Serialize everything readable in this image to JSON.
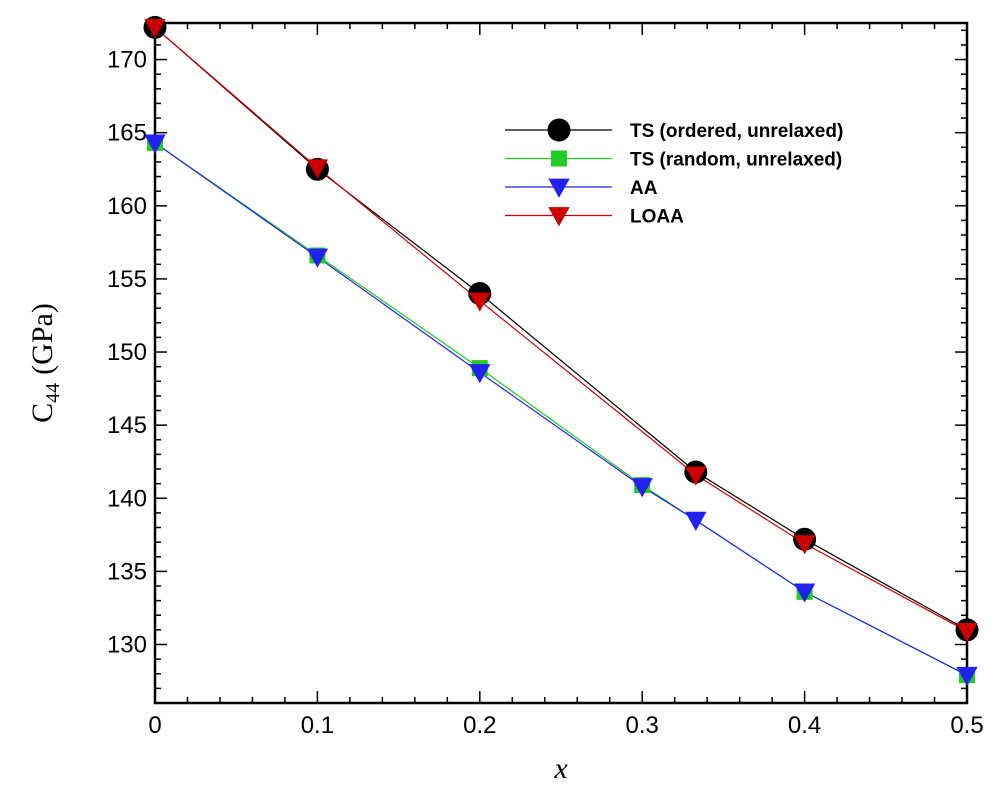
{
  "chart_data": {
    "type": "line",
    "title": "",
    "xlabel": "x",
    "ylabel": {
      "main": "C",
      "subscript": "44",
      "unit": "(GPa)"
    },
    "xlim": [
      0,
      0.5
    ],
    "ylim": [
      126,
      172.5
    ],
    "x_ticks": [
      {
        "value": 0,
        "label": "0"
      },
      {
        "value": 0.1,
        "label": "0.1"
      },
      {
        "value": 0.2,
        "label": "0.2"
      },
      {
        "value": 0.3,
        "label": "0.3"
      },
      {
        "value": 0.4,
        "label": "0.4"
      },
      {
        "value": 0.5,
        "label": "0.5"
      }
    ],
    "y_ticks": [
      {
        "value": 130,
        "label": "130"
      },
      {
        "value": 135,
        "label": "135"
      },
      {
        "value": 140,
        "label": "140"
      },
      {
        "value": 145,
        "label": "145"
      },
      {
        "value": 150,
        "label": "150"
      },
      {
        "value": 155,
        "label": "155"
      },
      {
        "value": 160,
        "label": "160"
      },
      {
        "value": 165,
        "label": "165"
      },
      {
        "value": 170,
        "label": "170"
      }
    ],
    "legend_position": "top-right",
    "series": [
      {
        "name": "TS (ordered, unrelaxed)",
        "color": "#000000",
        "marker": "circle",
        "x": [
          0,
          0.1,
          0.2,
          0.333,
          0.4,
          0.5
        ],
        "y": [
          172.2,
          162.5,
          154.0,
          141.8,
          137.2,
          131.0
        ]
      },
      {
        "name": "TS (random, unrelaxed)",
        "color": "#22cc22",
        "marker": "square",
        "x": [
          0,
          0.1,
          0.2,
          0.3,
          0.4,
          0.5
        ],
        "y": [
          164.3,
          156.6,
          148.9,
          140.9,
          133.6,
          127.9
        ]
      },
      {
        "name": "AA",
        "color": "#2222ee",
        "marker": "triangle-down",
        "x": [
          0,
          0.1,
          0.2,
          0.3,
          0.333,
          0.4,
          0.5
        ],
        "y": [
          164.3,
          156.5,
          148.6,
          140.8,
          138.5,
          133.6,
          127.9
        ]
      },
      {
        "name": "LOAA",
        "color": "#cc0000",
        "marker": "triangle-down",
        "x": [
          0,
          0.1,
          0.2,
          0.333,
          0.4,
          0.5
        ],
        "y": [
          172.2,
          162.6,
          153.5,
          141.6,
          136.9,
          130.9
        ]
      }
    ]
  }
}
